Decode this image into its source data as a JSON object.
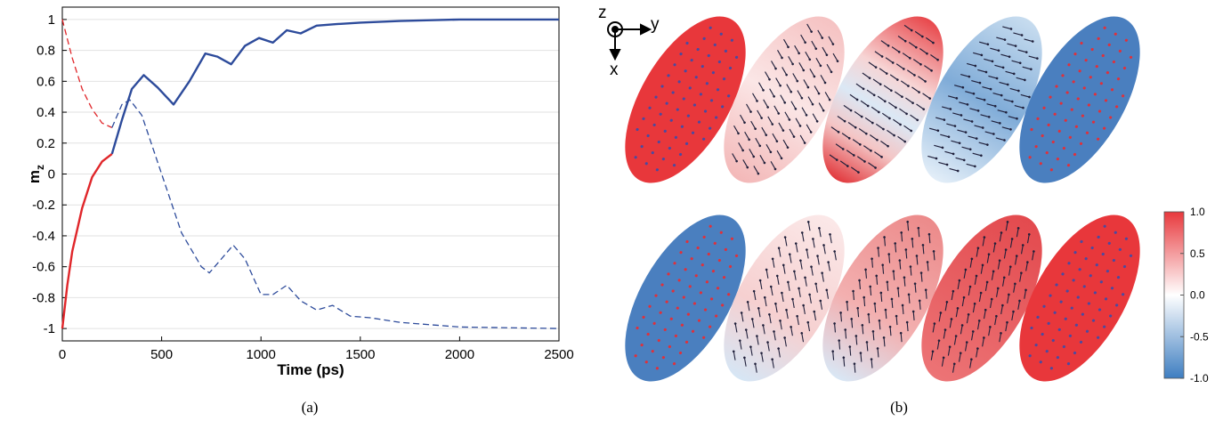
{
  "chart_data": {
    "type": "line",
    "xlabel": "Time (ps)",
    "ylabel": "m",
    "ylabel_subscript": "z",
    "xlim": [
      0,
      2500
    ],
    "xticks": [
      0,
      500,
      1000,
      1500,
      2000,
      2500
    ],
    "ylim": [
      -1.08,
      1.08
    ],
    "yticks": [
      -1,
      -0.8,
      -0.6,
      -0.4,
      -0.2,
      0,
      0.2,
      0.4,
      0.6,
      0.8,
      1
    ],
    "grid": true,
    "series": [
      {
        "color": "#e0262a",
        "dashed": false,
        "x": [
          0,
          25,
          50,
          100,
          150,
          200,
          250
        ],
        "values": [
          -1,
          -0.72,
          -0.5,
          -0.22,
          -0.02,
          0.08,
          0.13
        ]
      },
      {
        "color": "#e0262a",
        "dashed": true,
        "x": [
          0,
          50,
          100,
          150,
          200,
          250
        ],
        "values": [
          1,
          0.75,
          0.55,
          0.42,
          0.33,
          0.3
        ]
      },
      {
        "color": "#2d4b9b",
        "dashed": false,
        "x": [
          250,
          300,
          350,
          410,
          480,
          560,
          640,
          720,
          780,
          850,
          920,
          990,
          1060,
          1130,
          1200,
          1280,
          1380,
          1500,
          1700,
          2000,
          2500
        ],
        "values": [
          0.13,
          0.35,
          0.55,
          0.64,
          0.56,
          0.45,
          0.6,
          0.78,
          0.76,
          0.71,
          0.83,
          0.88,
          0.85,
          0.93,
          0.91,
          0.96,
          0.97,
          0.98,
          0.99,
          1,
          1
        ]
      },
      {
        "color": "#2d4b9b",
        "dashed": true,
        "x": [
          250,
          300,
          340,
          400,
          500,
          600,
          700,
          740,
          800,
          860,
          920,
          1000,
          1060,
          1130,
          1200,
          1280,
          1360,
          1450,
          1550,
          1700,
          2000,
          2500
        ],
        "values": [
          0.3,
          0.45,
          0.48,
          0.38,
          0,
          -0.38,
          -0.6,
          -0.64,
          -0.55,
          -0.46,
          -0.55,
          -0.78,
          -0.78,
          -0.72,
          -0.82,
          -0.88,
          -0.85,
          -0.92,
          -0.93,
          -0.96,
          -0.99,
          -1
        ]
      }
    ]
  },
  "panel_b": {
    "axis_labels": {
      "z": "z",
      "y": "y",
      "x": "x"
    },
    "colorbar": {
      "clim": [
        -1,
        1
      ],
      "ticks": [
        {
          "value": 1,
          "label": "1.0"
        },
        {
          "value": 0.5,
          "label": "0.5"
        },
        {
          "value": 0,
          "label": "0.0"
        },
        {
          "value": -0.5,
          "label": "-0.5"
        },
        {
          "value": -1,
          "label": "-1.0"
        }
      ]
    }
  },
  "captions": [
    "(a)",
    "(b)"
  ]
}
